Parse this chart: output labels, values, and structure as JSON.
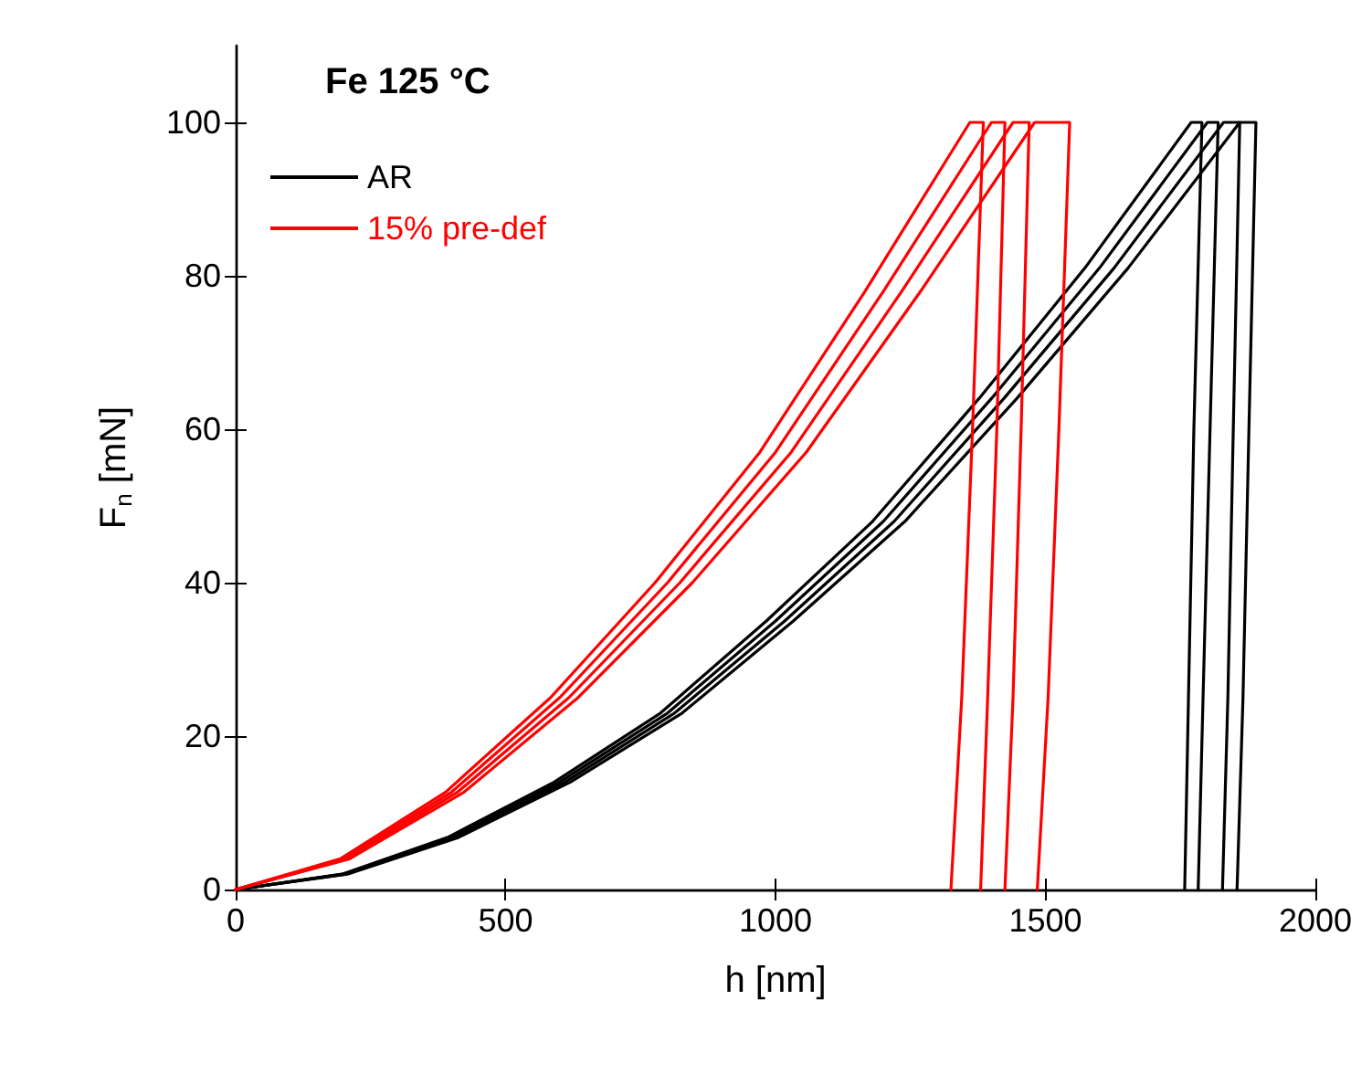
{
  "chart_data": {
    "type": "line",
    "title": "Fe 125 °C",
    "xlabel": "h [nm]",
    "ylabel": "F$_{n}$ [mN]",
    "xlim": [
      0,
      2000
    ],
    "xticks": [
      0,
      500,
      1000,
      1500,
      2000
    ],
    "ylim": [
      0,
      110
    ],
    "yticks": [
      0,
      20,
      40,
      60,
      80,
      100
    ],
    "grid": false,
    "legend": "top left",
    "line_style": "solid",
    "marker": "none",
    "series": [
      {
        "name": "AR",
        "color": "#000000",
        "x": [
          0,
          197,
          393,
          590,
          787,
          983,
          1180,
          1377,
          1573,
          1770,
          1790,
          1775,
          1765,
          1758
        ],
        "values": [
          0,
          2,
          6.8,
          14,
          23,
          35,
          48,
          64,
          81,
          100,
          100,
          60,
          25,
          0
        ]
      },
      {
        "color": "#000000",
        "x": [
          0,
          200,
          400,
          600,
          800,
          1000,
          1200,
          1400,
          1600,
          1800,
          1820,
          1805,
          1792,
          1783
        ],
        "values": [
          0,
          2,
          6.8,
          14,
          23,
          35,
          48,
          64,
          81,
          100,
          100,
          60,
          25,
          0
        ]
      },
      {
        "color": "#000000",
        "x": [
          0,
          203,
          407,
          610,
          813,
          1017,
          1220,
          1423,
          1627,
          1830,
          1860,
          1848,
          1838,
          1828
        ],
        "values": [
          0,
          2,
          6.8,
          14,
          23,
          35,
          48,
          64,
          81,
          100,
          100,
          60,
          25,
          0
        ]
      },
      {
        "color": "#000000",
        "x": [
          0,
          207,
          413,
          620,
          827,
          1033,
          1240,
          1447,
          1653,
          1860,
          1890,
          1877,
          1866,
          1855
        ],
        "values": [
          0,
          2,
          6.8,
          14,
          23,
          35,
          48,
          64,
          81,
          100,
          100,
          60,
          25,
          0
        ]
      },
      {
        "name": "15% pre-def",
        "color": "#ff0000",
        "x": [
          0,
          194,
          389,
          583,
          777,
          971,
          1166,
          1360,
          1385,
          1365,
          1345,
          1325
        ],
        "values": [
          0,
          4,
          12.7,
          25,
          40,
          57,
          78,
          100,
          100,
          60,
          25,
          0
        ]
      },
      {
        "color": "#ff0000",
        "x": [
          0,
          200,
          400,
          600,
          800,
          1000,
          1200,
          1400,
          1425,
          1410,
          1393,
          1380
        ],
        "values": [
          0,
          4,
          12.7,
          25,
          40,
          57,
          78,
          100,
          100,
          60,
          25,
          0
        ]
      },
      {
        "color": "#ff0000",
        "x": [
          0,
          206,
          411,
          617,
          823,
          1029,
          1234,
          1440,
          1470,
          1455,
          1440,
          1425
        ],
        "values": [
          0,
          4,
          12.7,
          25,
          40,
          57,
          78,
          100,
          100,
          60,
          25,
          0
        ]
      },
      {
        "color": "#ff0000",
        "x": [
          0,
          211,
          423,
          634,
          846,
          1057,
          1269,
          1480,
          1545,
          1525,
          1505,
          1485
        ],
        "values": [
          0,
          4,
          12.7,
          25,
          40,
          57,
          78,
          100,
          100,
          60,
          25,
          0
        ]
      }
    ]
  }
}
